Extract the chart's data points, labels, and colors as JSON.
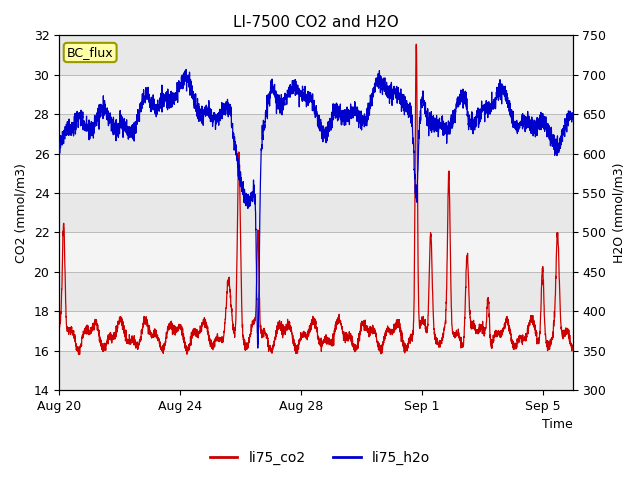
{
  "title": "LI-7500 CO2 and H2O",
  "xlabel": "Time",
  "ylabel_left": "CO2 (mmol/m3)",
  "ylabel_right": "H2O (mmol/m3)",
  "ylim_left": [
    14,
    32
  ],
  "ylim_right": [
    300,
    750
  ],
  "yticks_left": [
    14,
    16,
    18,
    20,
    22,
    24,
    26,
    28,
    30,
    32
  ],
  "yticks_right": [
    300,
    350,
    400,
    450,
    500,
    550,
    600,
    650,
    700,
    750
  ],
  "legend_labels": [
    "li75_co2",
    "li75_h2o"
  ],
  "legend_colors": [
    "#cc0000",
    "#0000cc"
  ],
  "co2_color": "#cc0000",
  "h2o_color": "#0000cc",
  "background_color": "#ffffff",
  "plot_bg_color": "#ffffff",
  "grid_color": "#bbbbbb",
  "label_box_text": "BC_flux",
  "label_box_facecolor": "#ffffaa",
  "label_box_edgecolor": "#999900",
  "title_fontsize": 11,
  "axis_label_fontsize": 9,
  "tick_label_fontsize": 9,
  "legend_fontsize": 10,
  "xlim": [
    0,
    17
  ],
  "x_ticks_labels": [
    "Aug 20",
    "Aug 24",
    "Aug 28",
    "Sep 1",
    "Sep 5"
  ],
  "x_ticks_positions": [
    0,
    4,
    8,
    12,
    16
  ],
  "h_bands": [
    [
      14,
      16,
      "#e8e8e8"
    ],
    [
      16,
      18,
      "#f4f4f4"
    ],
    [
      18,
      20,
      "#e8e8e8"
    ],
    [
      20,
      22,
      "#f4f4f4"
    ],
    [
      22,
      24,
      "#e8e8e8"
    ],
    [
      24,
      26,
      "#f4f4f4"
    ],
    [
      26,
      28,
      "#e8e8e8"
    ],
    [
      28,
      30,
      "#f4f4f4"
    ],
    [
      30,
      32,
      "#e8e8e8"
    ]
  ]
}
